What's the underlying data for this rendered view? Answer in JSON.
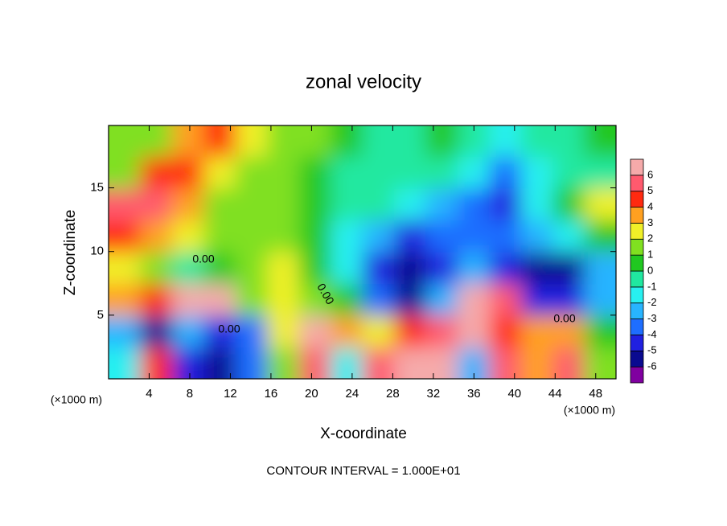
{
  "chart_data": {
    "type": "contour",
    "title": "zonal velocity",
    "x_label": "X-coordinate",
    "y_label": "Z-coordinate",
    "y_unit_label": "(×1000 m)",
    "x_unit_label": "(×1000 m)",
    "footer": "CONTOUR INTERVAL = 1.000E+01",
    "x": [
      1.5625,
      4.6875,
      7.8125,
      10.9375,
      14.0625,
      17.1875,
      20.3125,
      23.4375,
      26.5625,
      29.6875,
      32.8125,
      35.9375,
      39.0625,
      42.1875,
      45.3125,
      48.4375
    ],
    "z": [
      1.25,
      3.75,
      6.25,
      8.75,
      11.25,
      13.75,
      16.25,
      18.75
    ],
    "values": [
      [
        -2,
        4,
        -5,
        -6,
        -4,
        1,
        5,
        -2,
        5,
        6,
        6,
        -3,
        5,
        3,
        5,
        1
      ],
      [
        -3,
        -6,
        -3,
        -5,
        -4,
        2,
        6,
        3,
        2,
        4,
        5,
        6,
        4,
        3,
        3,
        0
      ],
      [
        3,
        4,
        6,
        6,
        1,
        2,
        1,
        0,
        -4,
        -6,
        -3,
        6,
        5,
        -5,
        -5,
        -3
      ],
      [
        2,
        1,
        -1,
        0,
        1,
        2,
        0,
        -2,
        -5,
        -6,
        -5,
        -3,
        -5,
        -6,
        -6,
        -3
      ],
      [
        4,
        3,
        2,
        1,
        1,
        1,
        0,
        -2,
        -3,
        -5,
        -4,
        -4,
        -4,
        -3,
        -2,
        0
      ],
      [
        5,
        5,
        3,
        1,
        1,
        1,
        0,
        -1,
        -1,
        -2,
        -3,
        -4,
        -5,
        -2,
        0,
        2
      ],
      [
        1,
        4,
        4,
        2,
        1,
        1,
        0,
        -1,
        -1,
        -1,
        -1,
        -2,
        -4,
        -2,
        -1,
        -1
      ],
      [
        1,
        1,
        3,
        4,
        2,
        1,
        1,
        0,
        -1,
        -1,
        0,
        -1,
        -2,
        -1,
        -1,
        0
      ]
    ],
    "levels": [
      -6,
      -5,
      -4,
      -3,
      -2,
      -1,
      0,
      1,
      2,
      3,
      4,
      5,
      6
    ],
    "colors": [
      "#8000a0",
      "#0a0a90",
      "#2020e0",
      "#1e6eff",
      "#28b4ff",
      "#28f0f0",
      "#20e8a0",
      "#20c820",
      "#80e020",
      "#f0f028",
      "#ffa020",
      "#ff2a10",
      "#ff5a6e",
      "#f5aaaa"
    ],
    "xlim": [
      0,
      50
    ],
    "ylim": [
      0,
      19.9
    ],
    "xticks": [
      4,
      8,
      12,
      16,
      20,
      24,
      28,
      32,
      36,
      40,
      44,
      48
    ],
    "yticks": [
      5,
      10,
      15
    ],
    "contour_labels": [
      "0.00",
      "0.00",
      "0.00",
      "0.00"
    ]
  }
}
